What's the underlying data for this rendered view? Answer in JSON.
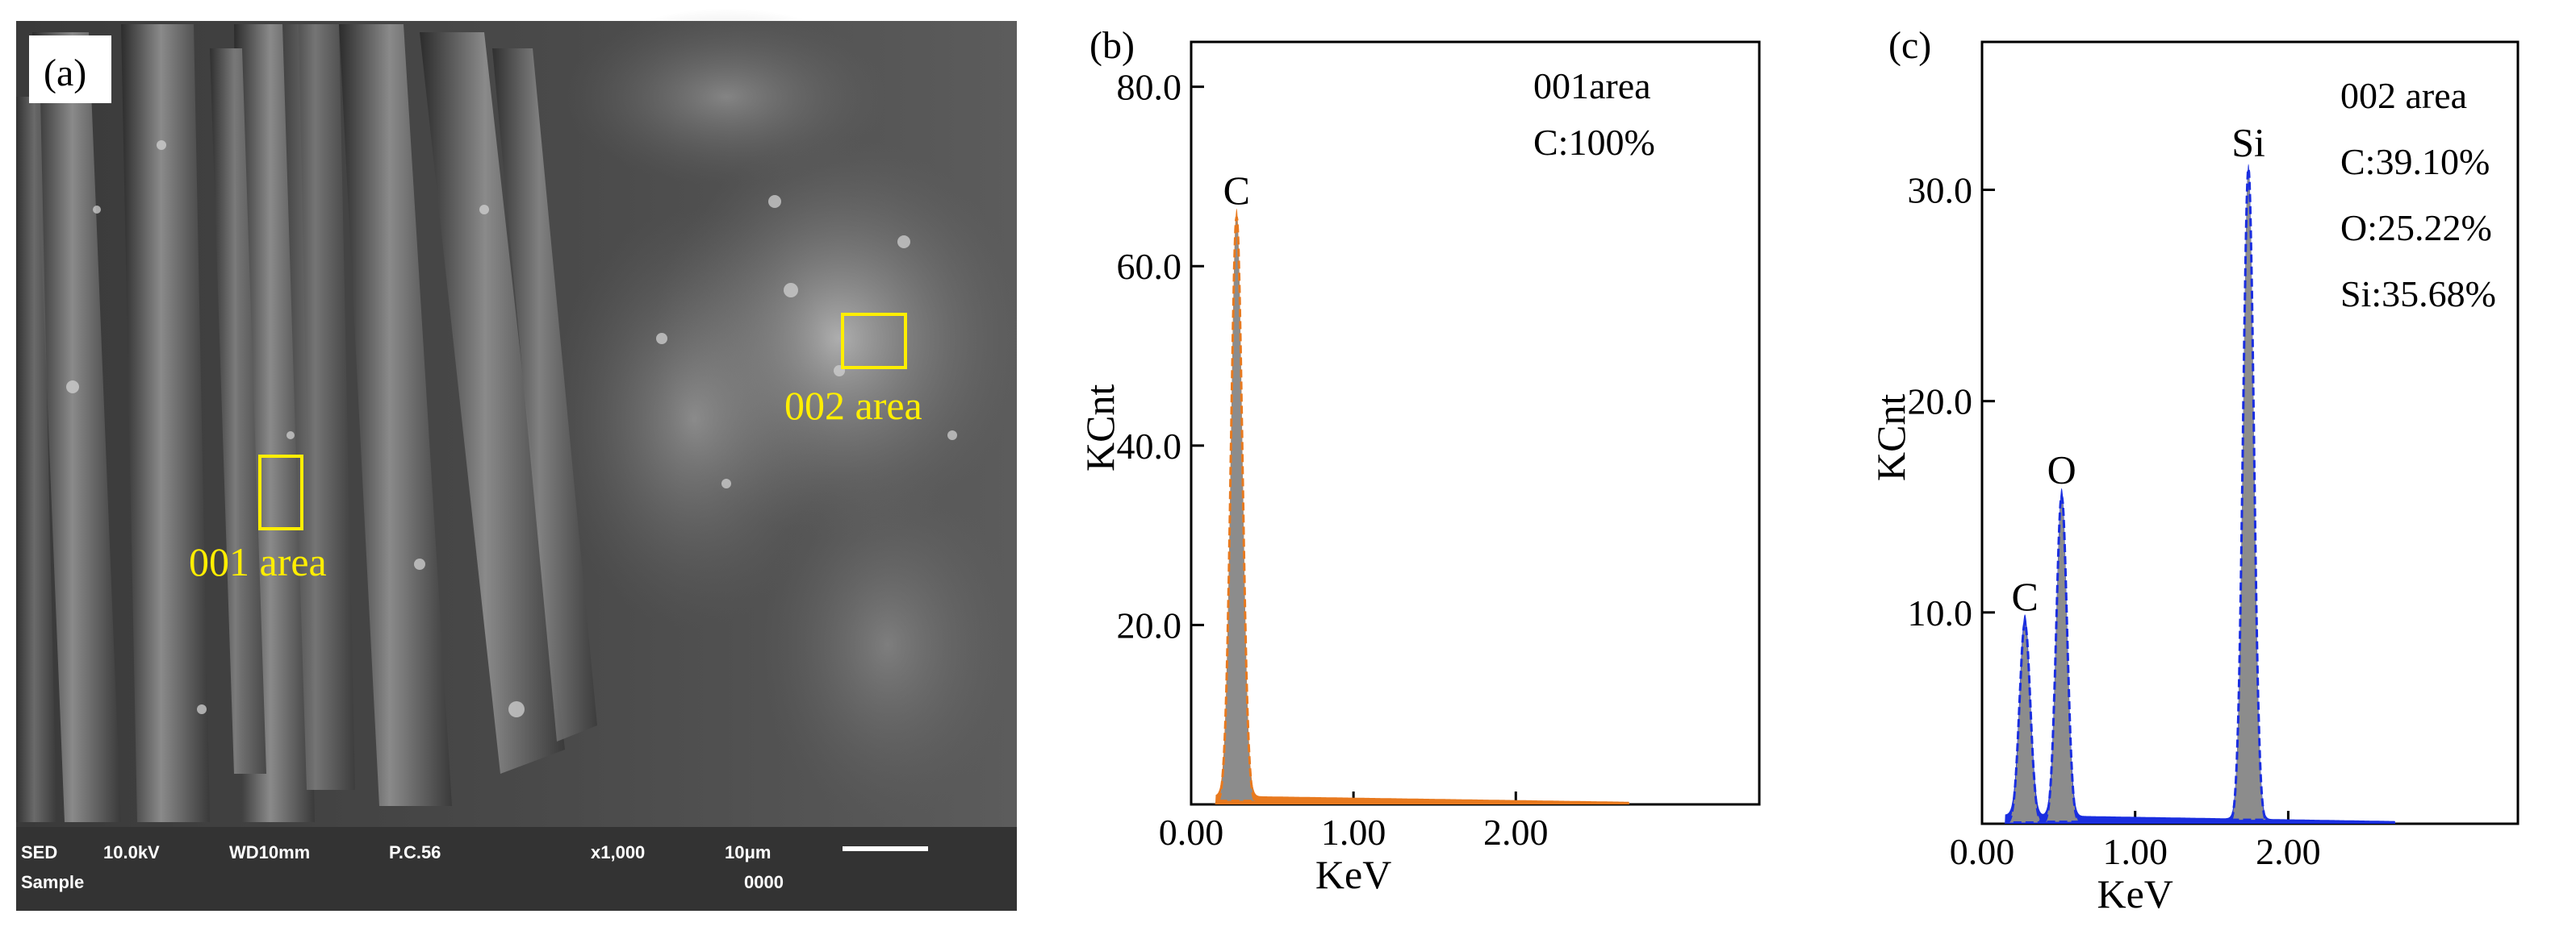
{
  "panels": {
    "a": {
      "label": "(a)",
      "area1_label": "001 area",
      "area2_label": "002 area",
      "info_bar": {
        "mode": "SED",
        "voltage": "10.0kV",
        "wd": "WD10mm",
        "pc": "P.C.56",
        "mag": "x1,000",
        "scale": "10μm",
        "sample": "Sample",
        "number": "0000"
      }
    }
  },
  "chart_data": [
    {
      "type": "line",
      "panel_label": "(b)",
      "xlabel": "KeV",
      "ylabel": "KCnt",
      "xlim": [
        0,
        3.5
      ],
      "ylim": [
        0,
        85
      ],
      "x_ticks": [
        0.0,
        1.0,
        2.0
      ],
      "x_tick_labels": [
        "0.00",
        "1.00",
        "2.00"
      ],
      "y_ticks": [
        20,
        40,
        60,
        80
      ],
      "y_tick_labels": [
        "20.0",
        "40.0",
        "60.0",
        "80.0"
      ],
      "spectrum_color": "#e8791e",
      "fill_color": "#8c8c8c",
      "peaks": [
        {
          "label": "C",
          "energy": 0.28,
          "counts": 65.5
        }
      ],
      "annotation": [
        "001area",
        "C:100%"
      ]
    },
    {
      "type": "line",
      "panel_label": "(c)",
      "xlabel": "KeV",
      "ylabel": "KCnt",
      "xlim": [
        0,
        3.5
      ],
      "ylim": [
        0,
        37
      ],
      "x_ticks": [
        0.0,
        1.0,
        2.0
      ],
      "x_tick_labels": [
        "0.00",
        "1.00",
        "2.00"
      ],
      "y_ticks": [
        10,
        20,
        30
      ],
      "y_tick_labels": [
        "10.0",
        "20.0",
        "30.0"
      ],
      "spectrum_color": "#1a2ee0",
      "fill_color": "#8c8c8c",
      "peaks": [
        {
          "label": "C",
          "energy": 0.28,
          "counts": 9.5
        },
        {
          "label": "O",
          "energy": 0.52,
          "counts": 15.5
        },
        {
          "label": "Si",
          "energy": 1.74,
          "counts": 31.0
        }
      ],
      "annotation": [
        "002 area",
        "C:39.10%",
        "O:25.22%",
        "Si:35.68%"
      ]
    }
  ]
}
